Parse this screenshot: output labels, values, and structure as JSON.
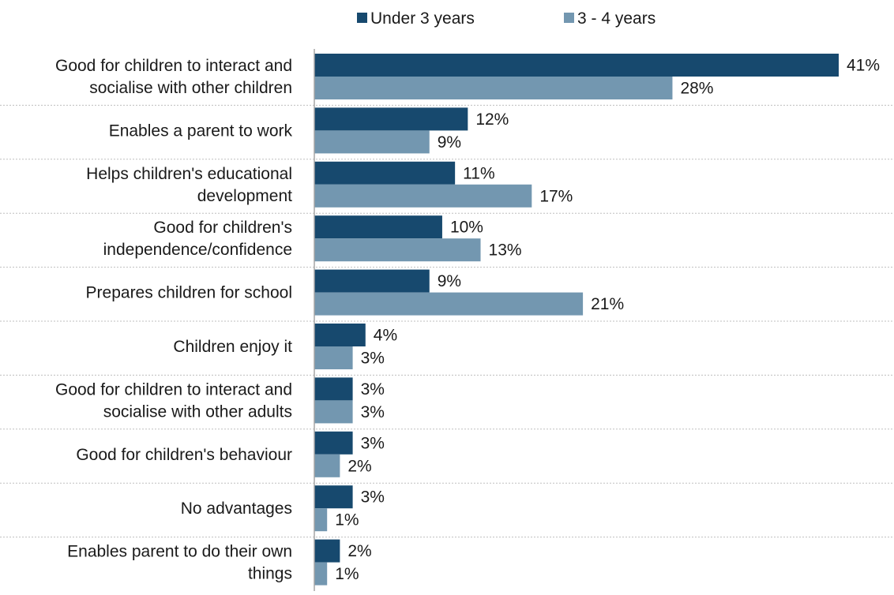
{
  "chart_data": {
    "type": "bar",
    "orientation": "horizontal",
    "title": "",
    "xlabel": "",
    "ylabel": "",
    "xlim": [
      0,
      41
    ],
    "legend_position": "top",
    "grid": false,
    "value_suffix": "%",
    "categories": [
      [
        "Good for children to interact and",
        "socialise with other children"
      ],
      [
        "Enables a parent to work"
      ],
      [
        "Helps children's educational",
        "development"
      ],
      [
        "Good for children's",
        "independence/confidence"
      ],
      [
        "Prepares children for school"
      ],
      [
        "Children enjoy it"
      ],
      [
        "Good for children to interact and",
        "socialise with other adults"
      ],
      [
        "Good for children's behaviour"
      ],
      [
        "No advantages"
      ],
      [
        "Enables parent to do their own",
        "things"
      ]
    ],
    "series": [
      {
        "name": "Under 3 years",
        "color": "#17496e",
        "values": [
          41,
          12,
          11,
          10,
          9,
          4,
          3,
          3,
          3,
          2
        ]
      },
      {
        "name": "3 - 4 years",
        "color": "#7397b0",
        "values": [
          28,
          9,
          17,
          13,
          21,
          3,
          3,
          2,
          1,
          1
        ]
      }
    ],
    "colors": {
      "axis": "#a6a6a6",
      "separator": "#bfbfbf",
      "text": "#1a1a1a"
    }
  }
}
